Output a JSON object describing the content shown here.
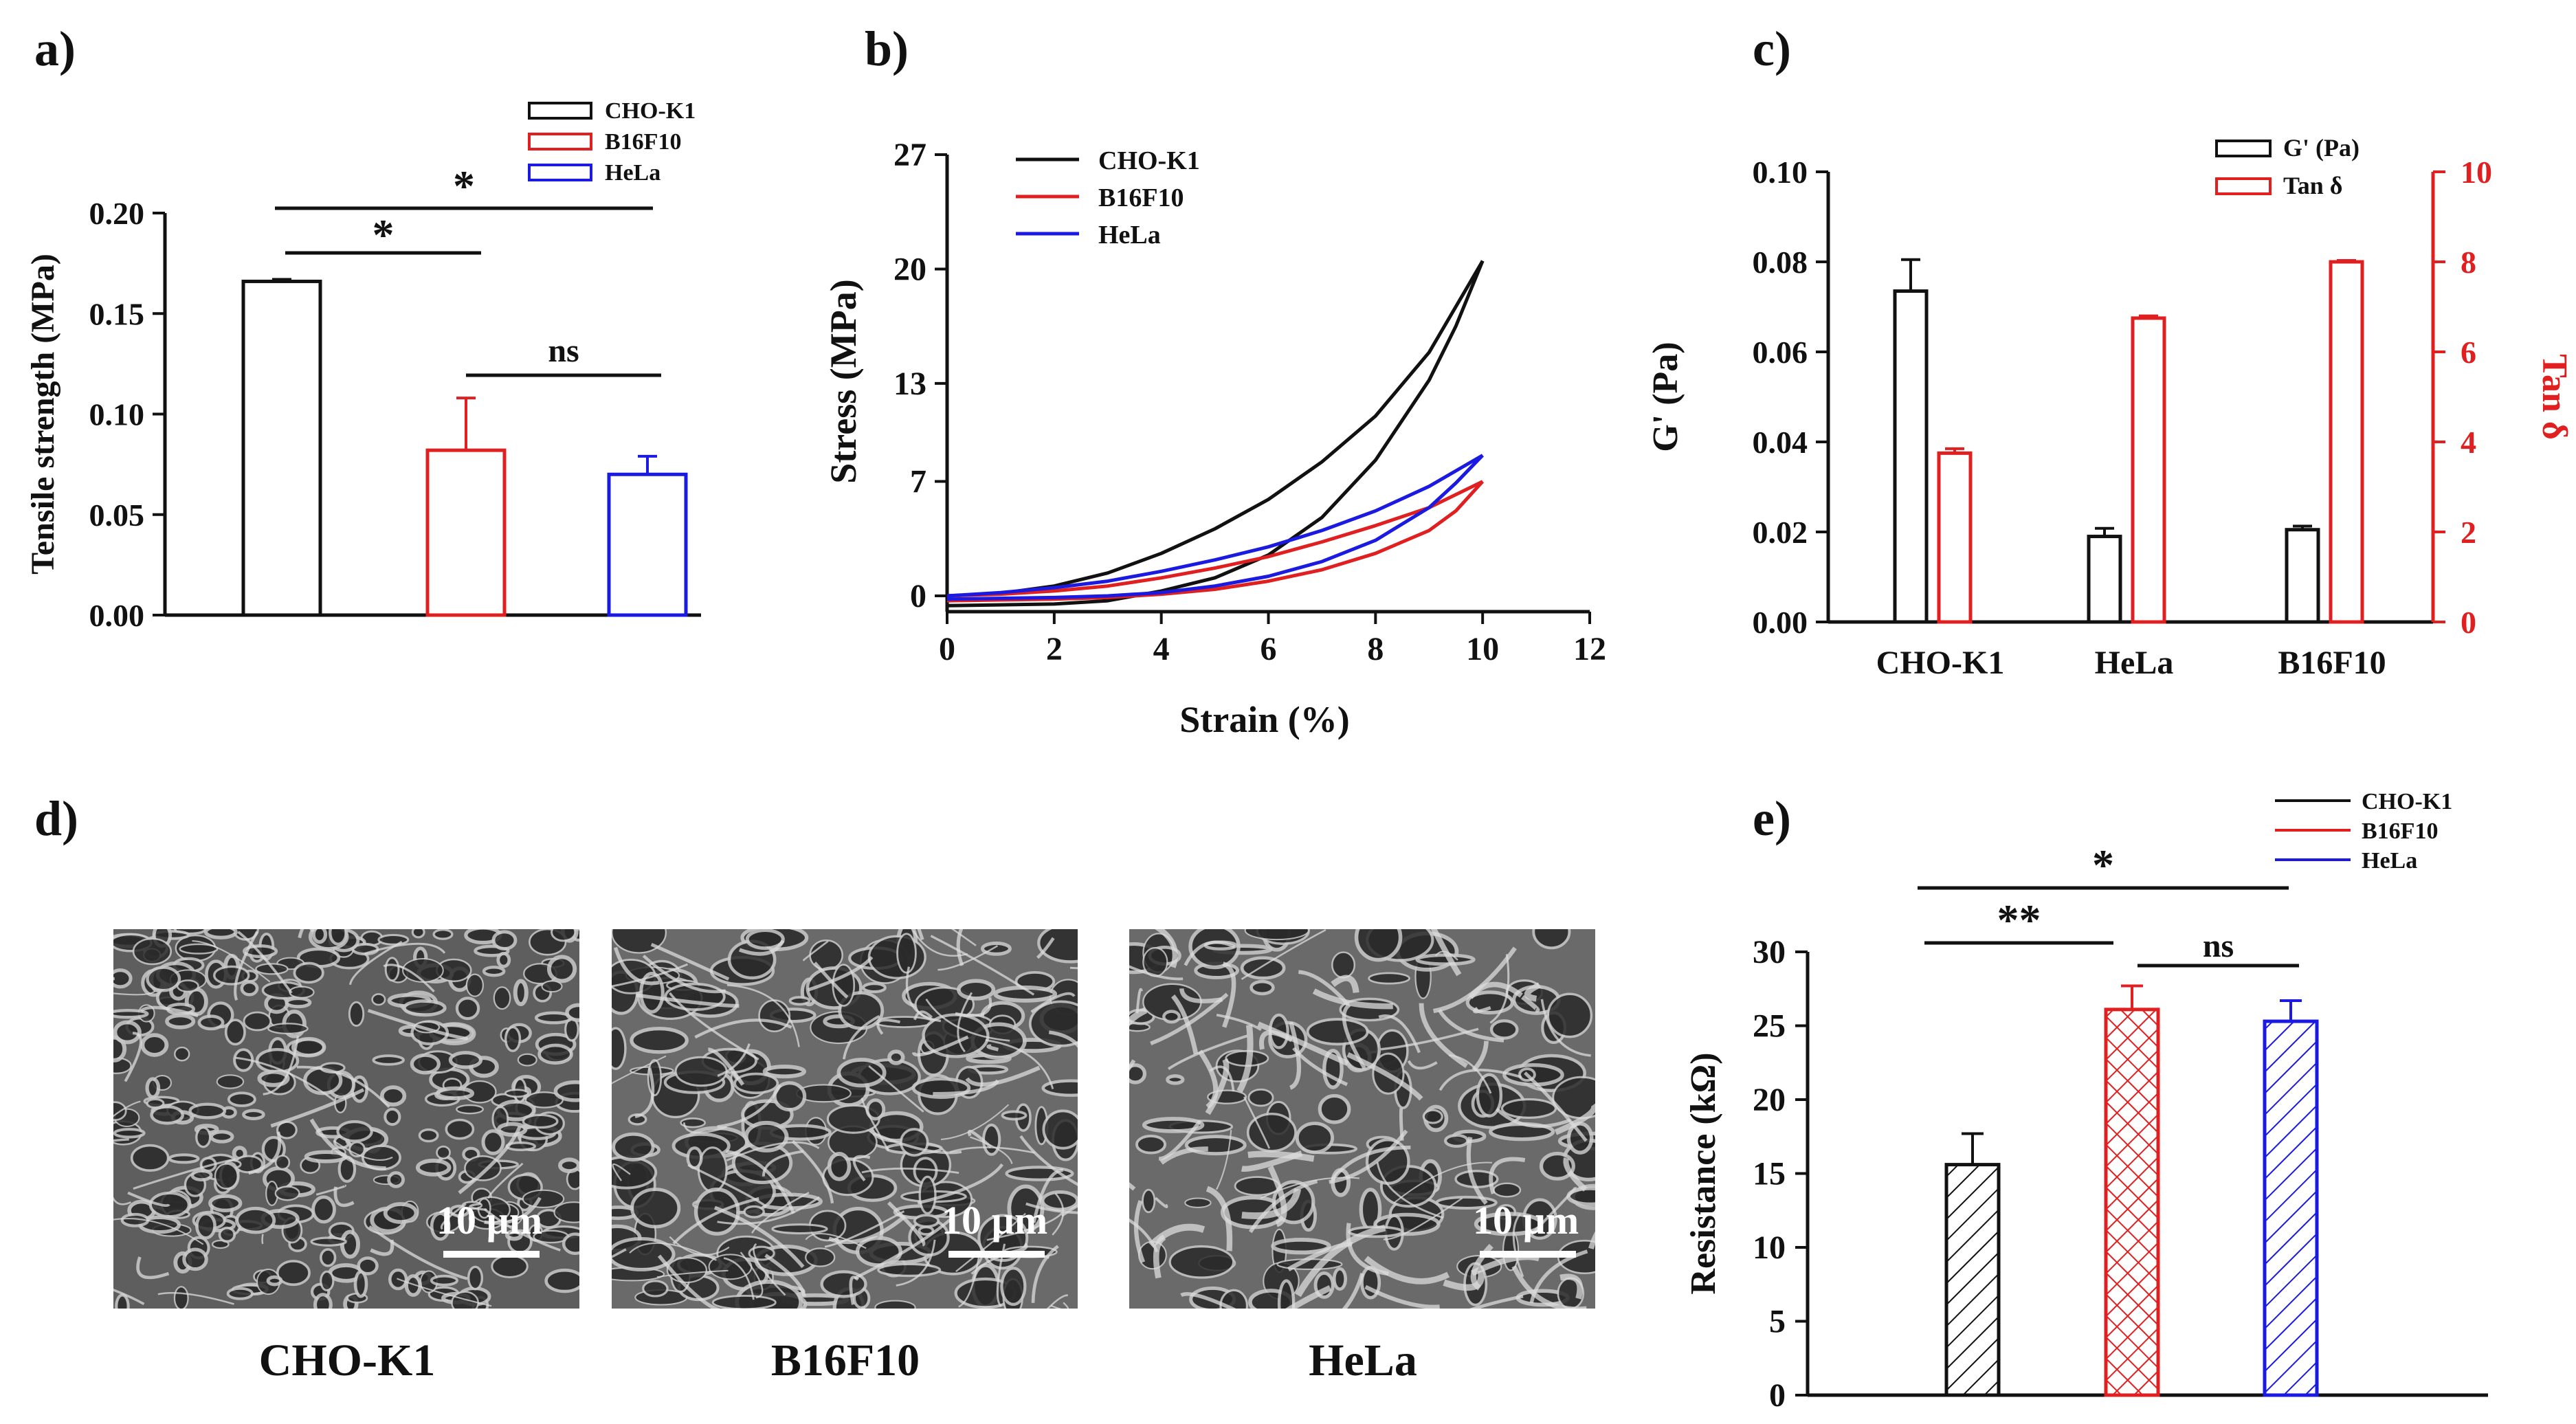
{
  "colors": {
    "black": "#111111",
    "red": "#e02020",
    "blue": "#1a1ae0"
  },
  "panel_labels": {
    "a": "a)",
    "b": "b)",
    "c": "c)",
    "d": "d)",
    "e": "e)"
  },
  "chart_data": [
    {
      "id": "a",
      "type": "bar",
      "categories": [
        "CHO-K1",
        "B16F10",
        "HeLa"
      ],
      "values": [
        0.166,
        0.082,
        0.07
      ],
      "errors": [
        0.001,
        0.026,
        0.009
      ],
      "colors": [
        "#111111",
        "#e02020",
        "#1a1ae0"
      ],
      "ylabel": "Tensile strength (MPa)",
      "ylim": [
        0,
        0.2
      ],
      "yticks": [
        "0.00",
        "0.05",
        "0.10",
        "0.15",
        "0.20"
      ],
      "legend": [
        "CHO-K1",
        "B16F10",
        "HeLa"
      ],
      "legend_position": "top-right",
      "significance": [
        {
          "from": 0,
          "to": 2,
          "label": "*"
        },
        {
          "from": 0,
          "to": 1,
          "label": "*"
        },
        {
          "from": 1,
          "to": 2,
          "label": "ns"
        }
      ]
    },
    {
      "id": "b",
      "type": "line",
      "xlabel": "Strain (%)",
      "ylabel": "Stress (MPa)",
      "xlim": [
        0,
        12
      ],
      "ylim": [
        -0.5,
        27
      ],
      "xticks": [
        "0",
        "2",
        "4",
        "6",
        "8",
        "10",
        "12"
      ],
      "yticks": [
        "0",
        "7",
        "13",
        "20",
        "27"
      ],
      "legend_position": "top-left",
      "series": [
        {
          "name": "CHO-K1",
          "color": "#111111",
          "max": 20.5,
          "loading_x": [
            0,
            1,
            2,
            3,
            4,
            5,
            6,
            7,
            8,
            9,
            10
          ],
          "loading_y": [
            0,
            0.15,
            0.6,
            1.4,
            2.6,
            4.1,
            5.9,
            8.2,
            11,
            14.9,
            20.5
          ],
          "unloading_x": [
            10,
            9.5,
            9,
            8,
            7,
            6,
            5,
            4,
            3,
            2,
            0
          ],
          "unloading_y": [
            20.5,
            16.5,
            13.2,
            8.3,
            4.8,
            2.5,
            1.1,
            0.3,
            -0.3,
            -0.5,
            -0.6
          ]
        },
        {
          "name": "B16F10",
          "color": "#e02020",
          "max": 7,
          "loading_x": [
            0,
            1,
            2,
            3,
            4,
            5,
            6,
            7,
            8,
            9,
            10
          ],
          "loading_y": [
            0,
            0.1,
            0.3,
            0.6,
            1.1,
            1.7,
            2.4,
            3.3,
            4.3,
            5.4,
            7
          ],
          "unloading_x": [
            10,
            9.5,
            9,
            8,
            7,
            6,
            5,
            4,
            3,
            2,
            0
          ],
          "unloading_y": [
            7,
            5.2,
            4.0,
            2.6,
            1.6,
            0.9,
            0.4,
            0.1,
            -0.1,
            -0.2,
            -0.3
          ]
        },
        {
          "name": "HeLa",
          "color": "#1a1ae0",
          "max": 8.6,
          "loading_x": [
            0,
            1,
            2,
            3,
            4,
            5,
            6,
            7,
            8,
            9,
            10
          ],
          "loading_y": [
            0,
            0.2,
            0.5,
            0.9,
            1.5,
            2.2,
            3.0,
            4.0,
            5.2,
            6.7,
            8.6
          ],
          "unloading_x": [
            10,
            9.5,
            9,
            8,
            7,
            6,
            5,
            4,
            3,
            2,
            0
          ],
          "unloading_y": [
            8.6,
            6.9,
            5.4,
            3.4,
            2.1,
            1.2,
            0.6,
            0.2,
            0,
            -0.1,
            -0.2
          ]
        }
      ]
    },
    {
      "id": "c",
      "type": "bar",
      "categories": [
        "CHO-K1",
        "HeLa",
        "B16F10"
      ],
      "series": [
        {
          "name": "G' (Pa)",
          "axis": "left",
          "color": "#111111",
          "values": [
            0.0735,
            0.019,
            0.0205
          ],
          "errors": [
            0.007,
            0.0018,
            0.0008
          ]
        },
        {
          "name": "Tan δ",
          "axis": "right",
          "color": "#e02020",
          "values": [
            3.75,
            6.75,
            8.0
          ],
          "errors": [
            0.1,
            0.05,
            0.03
          ]
        }
      ],
      "ylabel": "G' (Pa)",
      "ylabel_right": "Tan δ",
      "ylim": [
        0,
        0.1
      ],
      "ylim_right": [
        0,
        10
      ],
      "yticks": [
        "0.00",
        "0.02",
        "0.04",
        "0.06",
        "0.08",
        "0.10"
      ],
      "yticks_right": [
        "0",
        "2",
        "4",
        "6",
        "8",
        "10"
      ],
      "legend_position": "top-right"
    },
    {
      "id": "e",
      "type": "bar",
      "categories": [
        "CHO-K1",
        "B16F10",
        "HeLa"
      ],
      "values": [
        15.6,
        26.1,
        25.3
      ],
      "errors": [
        2.1,
        1.6,
        1.4
      ],
      "colors": [
        "#111111",
        "#e02020",
        "#1a1ae0"
      ],
      "patterns": [
        "diagonal",
        "crosshatch",
        "diagonal"
      ],
      "ylabel": "Resistance (kΩ)",
      "ylim": [
        0,
        30
      ],
      "yticks": [
        "0",
        "5",
        "10",
        "15",
        "20",
        "25",
        "30"
      ],
      "legend": [
        "CHO-K1",
        "B16F10",
        "HeLa"
      ],
      "legend_position": "top-right",
      "significance": [
        {
          "from": 0,
          "to": 2,
          "label": "*"
        },
        {
          "from": 0,
          "to": 1,
          "label": "**"
        },
        {
          "from": 1,
          "to": 2,
          "label": "ns"
        }
      ]
    }
  ],
  "sem_images": [
    {
      "caption": "CHO-K1",
      "scale_bar": "10 µm"
    },
    {
      "caption": "B16F10",
      "scale_bar": "10 µm"
    },
    {
      "caption": "HeLa",
      "scale_bar": "10 µm"
    }
  ]
}
